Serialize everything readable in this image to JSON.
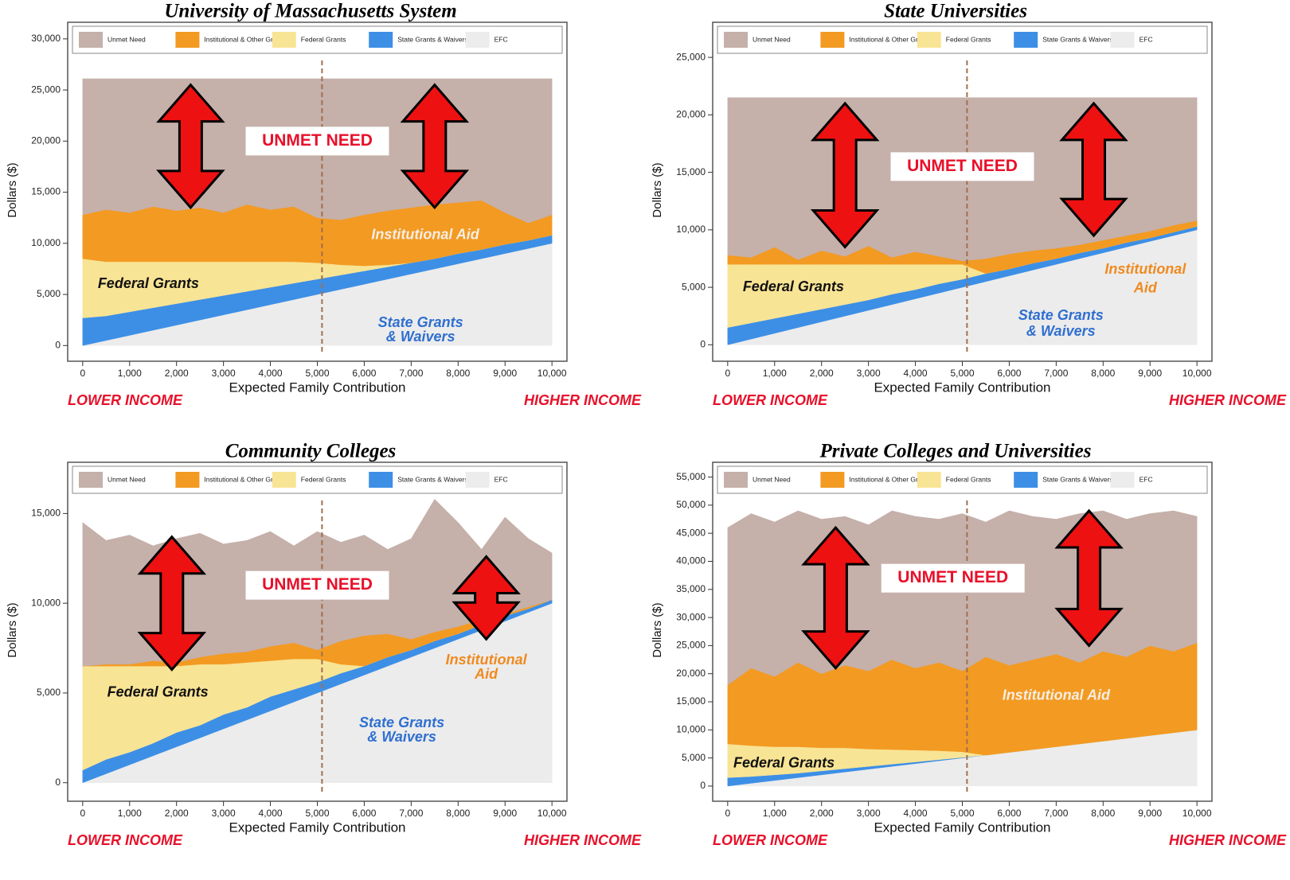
{
  "chart_data": [
    {
      "type": "stacked-area",
      "title": "University of Massachusetts System",
      "x_label": "Expected Family Contribution",
      "y_label": "Dollars ($)",
      "left_label": "LOWER INCOME",
      "right_label": "HIGHER INCOME",
      "x": [
        0,
        500,
        1000,
        1500,
        2000,
        2500,
        3000,
        3500,
        4000,
        4500,
        5000,
        5500,
        6000,
        6500,
        7000,
        7500,
        8000,
        8500,
        9000,
        9500,
        10000
      ],
      "series": [
        {
          "name": "EFC",
          "color": "#ececec",
          "values": [
            0,
            500,
            1000,
            1500,
            2000,
            2500,
            3000,
            3500,
            4000,
            4500,
            5000,
            5500,
            6000,
            6500,
            7000,
            7500,
            8000,
            8500,
            9000,
            9500,
            10000
          ]
        },
        {
          "name": "State Grants & Waivers",
          "color": "#3d8fe6",
          "values": [
            2700,
            2400,
            2300,
            2200,
            2100,
            2000,
            1900,
            1800,
            1700,
            1600,
            1500,
            1400,
            1300,
            1200,
            1100,
            1000,
            1000,
            900,
            900,
            800,
            800
          ]
        },
        {
          "name": "Federal Grants",
          "color": "#f8e495",
          "values": [
            5800,
            5300,
            4900,
            4500,
            4100,
            3700,
            3300,
            2900,
            2500,
            2100,
            1600,
            1000,
            500,
            200,
            0,
            0,
            0,
            0,
            0,
            0,
            0
          ]
        },
        {
          "name": "Institutional & Other Grants",
          "color": "#f39a22",
          "values": [
            4300,
            5100,
            4800,
            5400,
            5000,
            5300,
            4800,
            5600,
            5100,
            5400,
            4400,
            4400,
            5000,
            5300,
            5400,
            5300,
            5000,
            4800,
            3100,
            1700,
            2000
          ]
        },
        {
          "name": "Unmet Need",
          "color": "#c5b0aa",
          "values": [
            13300,
            12800,
            13100,
            12500,
            12900,
            12600,
            13100,
            12300,
            12800,
            12500,
            13600,
            13800,
            13300,
            12900,
            12600,
            12300,
            12100,
            11900,
            13100,
            14100,
            13300
          ]
        }
      ],
      "vline": 5100,
      "xlim": [
        -150,
        10150
      ],
      "ylim": [
        -600,
        31000
      ],
      "xticks": [
        0,
        {
          "value": 1000,
          "label": "1,000"
        },
        {
          "value": 2000,
          "label": "2,000"
        },
        {
          "value": 3000,
          "label": "3,000"
        },
        {
          "value": 4000,
          "label": "4,000"
        },
        {
          "value": 5000,
          "label": "5,000"
        },
        {
          "value": 6000,
          "label": "6,000"
        },
        {
          "value": 7000,
          "label": "7,000"
        },
        {
          "value": 8000,
          "label": "8,000"
        },
        {
          "value": 9000,
          "label": "9,000"
        },
        {
          "value": 10000,
          "label": "10,000"
        }
      ],
      "yticks": [
        0,
        {
          "value": 5000,
          "label": "5,000"
        },
        {
          "value": 10000,
          "label": "10,000"
        },
        {
          "value": 15000,
          "label": "15,000"
        },
        {
          "value": 20000,
          "label": "20,000"
        },
        {
          "value": 25000,
          "label": "25,000"
        },
        {
          "value": 30000,
          "label": "30,000"
        }
      ],
      "annotations": [
        "UNMET NEED",
        "Institutional Aid",
        "Federal Grants",
        "State Grants",
        "& Waivers"
      ]
    },
    {
      "type": "stacked-area",
      "title": "State Universities",
      "x_label": "Expected Family Contribution",
      "y_label": "Dollars ($)",
      "left_label": "LOWER INCOME",
      "right_label": "HIGHER INCOME",
      "x": [
        0,
        500,
        1000,
        1500,
        2000,
        2500,
        3000,
        3500,
        4000,
        4500,
        5000,
        5500,
        6000,
        6500,
        7000,
        7500,
        8000,
        8500,
        9000,
        9500,
        10000
      ],
      "series": [
        {
          "name": "EFC",
          "color": "#ececec",
          "values": [
            0,
            500,
            1000,
            1500,
            2000,
            2500,
            3000,
            3500,
            4000,
            4500,
            5000,
            5500,
            6000,
            6500,
            7000,
            7500,
            8000,
            8500,
            9000,
            9500,
            10000
          ]
        },
        {
          "name": "State Grants & Waivers",
          "color": "#3d8fe6",
          "values": [
            1500,
            1400,
            1300,
            1200,
            1100,
            1000,
            900,
            900,
            800,
            800,
            700,
            700,
            600,
            600,
            500,
            500,
            400,
            400,
            300,
            300,
            300
          ]
        },
        {
          "name": "Federal Grants",
          "color": "#f8e495",
          "values": [
            5500,
            5100,
            4700,
            4300,
            3900,
            3500,
            3100,
            2600,
            2200,
            1700,
            1300,
            0,
            0,
            0,
            0,
            0,
            0,
            0,
            0,
            0,
            0
          ]
        },
        {
          "name": "Institutional & Other Grants",
          "color": "#f39a22",
          "values": [
            800,
            600,
            1500,
            400,
            1200,
            700,
            1600,
            600,
            1100,
            700,
            300,
            1300,
            1300,
            1100,
            900,
            700,
            700,
            600,
            600,
            600,
            500
          ]
        },
        {
          "name": "Unmet Need",
          "color": "#c5b0aa",
          "values": [
            13700,
            13900,
            13000,
            14100,
            13300,
            13800,
            12900,
            13900,
            13400,
            13800,
            14200,
            14000,
            13600,
            13300,
            13100,
            12800,
            12400,
            12000,
            11600,
            11100,
            10700
          ]
        }
      ],
      "vline": 5100,
      "xlim": [
        -150,
        10150
      ],
      "ylim": [
        -600,
        27500
      ],
      "xticks": [
        0,
        {
          "value": 1000,
          "label": "1,000"
        },
        {
          "value": 2000,
          "label": "2,000"
        },
        {
          "value": 3000,
          "label": "3,000"
        },
        {
          "value": 4000,
          "label": "4,000"
        },
        {
          "value": 5000,
          "label": "5,000"
        },
        {
          "value": 6000,
          "label": "6,000"
        },
        {
          "value": 7000,
          "label": "7,000"
        },
        {
          "value": 8000,
          "label": "8,000"
        },
        {
          "value": 9000,
          "label": "9,000"
        },
        {
          "value": 10000,
          "label": "10,000"
        }
      ],
      "yticks": [
        0,
        {
          "value": 5000,
          "label": "5,000"
        },
        {
          "value": 10000,
          "label": "10,000"
        },
        {
          "value": 15000,
          "label": "15,000"
        },
        {
          "value": 20000,
          "label": "20,000"
        },
        {
          "value": 25000,
          "label": "25,000"
        }
      ],
      "annotations": [
        "UNMET NEED",
        "Institutional",
        "Aid",
        "Federal Grants",
        "State Grants",
        "& Waivers"
      ]
    },
    {
      "type": "stacked-area",
      "title": "Community Colleges",
      "x_label": "Expected Family Contribution",
      "y_label": "Dollars ($)",
      "left_label": "LOWER INCOME",
      "right_label": "HIGHER INCOME",
      "x": [
        0,
        500,
        1000,
        1500,
        2000,
        2500,
        3000,
        3500,
        4000,
        4500,
        5000,
        5500,
        6000,
        6500,
        7000,
        7500,
        8000,
        8500,
        9000,
        9500,
        10000
      ],
      "series": [
        {
          "name": "EFC",
          "color": "#ececec",
          "values": [
            0,
            500,
            1000,
            1500,
            2000,
            2500,
            3000,
            3500,
            4000,
            4500,
            5000,
            5500,
            6000,
            6500,
            7000,
            7500,
            8000,
            8500,
            9000,
            9500,
            10000
          ]
        },
        {
          "name": "State Grants & Waivers",
          "color": "#3d8fe6",
          "values": [
            700,
            800,
            700,
            700,
            800,
            700,
            800,
            700,
            800,
            700,
            600,
            600,
            500,
            500,
            400,
            400,
            300,
            300,
            300,
            200,
            200
          ]
        },
        {
          "name": "Federal Grants",
          "color": "#f8e495",
          "values": [
            5800,
            5200,
            4800,
            4300,
            3700,
            3400,
            2800,
            2500,
            2000,
            1700,
            1300,
            500,
            0,
            0,
            0,
            0,
            0,
            0,
            0,
            0,
            0
          ]
        },
        {
          "name": "Institutional & Other Grants",
          "color": "#f39a22",
          "values": [
            0,
            100,
            100,
            300,
            200,
            400,
            600,
            600,
            800,
            900,
            500,
            1300,
            1700,
            1300,
            600,
            500,
            400,
            300,
            100,
            100,
            0
          ]
        },
        {
          "name": "Unmet Need",
          "color": "#c5b0aa",
          "values": [
            8000,
            6900,
            7200,
            6400,
            6900,
            6900,
            6100,
            6200,
            6400,
            5400,
            6600,
            5500,
            5600,
            4700,
            5600,
            7400,
            5800,
            3900,
            5400,
            3800,
            2600
          ]
        }
      ],
      "vline": 5100,
      "xlim": [
        -150,
        10150
      ],
      "ylim": [
        -500,
        17500
      ],
      "xticks": [
        0,
        {
          "value": 1000,
          "label": "1,000"
        },
        {
          "value": 2000,
          "label": "2,000"
        },
        {
          "value": 3000,
          "label": "3,000"
        },
        {
          "value": 4000,
          "label": "4,000"
        },
        {
          "value": 5000,
          "label": "5,000"
        },
        {
          "value": 6000,
          "label": "6,000"
        },
        {
          "value": 7000,
          "label": "7,000"
        },
        {
          "value": 8000,
          "label": "8,000"
        },
        {
          "value": 9000,
          "label": "9,000"
        },
        {
          "value": 10000,
          "label": "10,000"
        }
      ],
      "yticks": [
        0,
        {
          "value": 5000,
          "label": "5,000"
        },
        {
          "value": 10000,
          "label": "10,000"
        },
        {
          "value": 15000,
          "label": "15,000"
        }
      ],
      "annotations": [
        "UNMET NEED",
        "Institutional",
        "Aid",
        "Federal Grants",
        "State Grants",
        "& Waivers"
      ]
    },
    {
      "type": "stacked-area",
      "title": "Private Colleges and Universities",
      "x_label": "Expected Family Contribution",
      "y_label": "Dollars ($)",
      "left_label": "LOWER INCOME",
      "right_label": "HIGHER INCOME",
      "x": [
        0,
        500,
        1000,
        1500,
        2000,
        2500,
        3000,
        3500,
        4000,
        4500,
        5000,
        5500,
        6000,
        6500,
        7000,
        7500,
        8000,
        8500,
        9000,
        9500,
        10000
      ],
      "series": [
        {
          "name": "EFC",
          "color": "#ececec",
          "values": [
            0,
            500,
            1000,
            1500,
            2000,
            2500,
            3000,
            3500,
            4000,
            4500,
            5000,
            5500,
            6000,
            6500,
            7000,
            7500,
            8000,
            8500,
            9000,
            9500,
            10000
          ]
        },
        {
          "name": "State Grants & Waivers",
          "color": "#3d8fe6",
          "values": [
            1500,
            1200,
            1000,
            800,
            700,
            600,
            500,
            400,
            300,
            200,
            100,
            0,
            0,
            0,
            0,
            0,
            0,
            0,
            0,
            0,
            0
          ]
        },
        {
          "name": "Federal Grants",
          "color": "#f8e495",
          "values": [
            6000,
            5500,
            5000,
            4700,
            4100,
            3700,
            3100,
            2600,
            2100,
            1600,
            1000,
            0,
            0,
            0,
            0,
            0,
            0,
            0,
            0,
            0,
            0
          ]
        },
        {
          "name": "Institutional & Other Grants",
          "color": "#f39a22",
          "values": [
            10500,
            13800,
            12500,
            15000,
            13200,
            14700,
            13900,
            16000,
            14600,
            15700,
            14400,
            17500,
            15500,
            16000,
            16500,
            14500,
            16000,
            14500,
            16000,
            14500,
            15500
          ]
        },
        {
          "name": "Unmet Need",
          "color": "#c5b0aa",
          "values": [
            28000,
            27500,
            27500,
            27000,
            27500,
            26500,
            26000,
            26500,
            27000,
            25500,
            28000,
            24000,
            27500,
            25500,
            24000,
            26500,
            25000,
            24500,
            23500,
            25000,
            22500
          ]
        }
      ],
      "vline": 5100,
      "xlim": [
        -150,
        10150
      ],
      "ylim": [
        -1000,
        56500
      ],
      "xticks": [
        0,
        {
          "value": 1000,
          "label": "1,000"
        },
        {
          "value": 2000,
          "label": "2,000"
        },
        {
          "value": 3000,
          "label": "3,000"
        },
        {
          "value": 4000,
          "label": "4,000"
        },
        {
          "value": 5000,
          "label": "5,000"
        },
        {
          "value": 6000,
          "label": "6,000"
        },
        {
          "value": 7000,
          "label": "7,000"
        },
        {
          "value": 8000,
          "label": "8,000"
        },
        {
          "value": 9000,
          "label": "9,000"
        },
        {
          "value": 10000,
          "label": "10,000"
        }
      ],
      "yticks": [
        0,
        {
          "value": 5000,
          "label": "5,000"
        },
        {
          "value": 10000,
          "label": "10,000"
        },
        {
          "value": 15000,
          "label": "15,000"
        },
        {
          "value": 20000,
          "label": "20,000"
        },
        {
          "value": 25000,
          "label": "25,000"
        },
        {
          "value": 30000,
          "label": "30,000"
        },
        {
          "value": 35000,
          "label": "35,000"
        },
        {
          "value": 40000,
          "label": "40,000"
        },
        {
          "value": 45000,
          "label": "45,000"
        },
        {
          "value": 50000,
          "label": "50,000"
        },
        {
          "value": 55000,
          "label": "55,000"
        }
      ],
      "annotations": [
        "UNMET NEED",
        "Institutional Aid",
        "Federal Grants"
      ]
    }
  ]
}
